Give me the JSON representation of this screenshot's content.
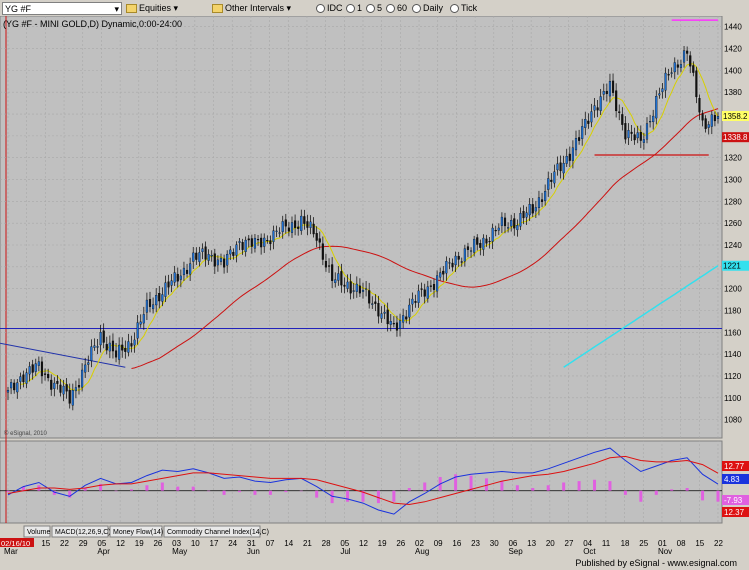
{
  "toolbar": {
    "symbol": "YG #F",
    "equities": "Equities",
    "intervals": "Other Intervals",
    "items": [
      "IDC",
      "1",
      "5",
      "60",
      "Daily",
      "Tick"
    ]
  },
  "chart_title": "(YG #F - MINI GOLD,D) Dynamic,0:00-24:00",
  "watermark": "© eSignal, 2010",
  "publisher": "Published by eSignal - www.esignal.com",
  "colors": {
    "bg": "#c0c0c0",
    "up": "#2a8c2a",
    "down": "#1a1a1a",
    "ma_red": "#cc1111",
    "ma_yellow": "#d8d000",
    "ma_cyan": "#33e0ee",
    "hline": "#2222bb",
    "trend": "#2233aa",
    "magenta": "#ff33ff",
    "macd_blue": "#1a33dd",
    "macd_red": "#dd1111",
    "hist": "#e060e0"
  },
  "price_badges": [
    {
      "label": "1358.2",
      "value": 1358.2,
      "color": "#ffff66"
    },
    {
      "label": "1338.8",
      "value": 1338.8,
      "color": "#cc1111"
    },
    {
      "label": "1221",
      "value": 1221,
      "color": "#33e0ee"
    }
  ],
  "macd_badges": [
    {
      "label": "12.77",
      "color": "#dd1111"
    },
    {
      "label": "4.83",
      "color": "#1a33dd"
    },
    {
      "label": "-7.93",
      "color": "#e060e0"
    },
    {
      "label": "12.37",
      "color": "#dd1111"
    }
  ],
  "tabs": [
    "Volume",
    "MACD(12,26,9,C)",
    "Money Flow(14)",
    "Commodity Channel Index(14,C)"
  ],
  "date_start_label": "02/16/10",
  "chart_data": [
    {
      "type": "candlestick",
      "title": "(YG #F - MINI GOLD,D) Dynamic,0:00-24:00",
      "ylim": [
        1065,
        1448
      ],
      "yticks": [
        1080,
        1100,
        1120,
        1140,
        1160,
        1180,
        1200,
        1220,
        1240,
        1260,
        1280,
        1300,
        1320,
        1340,
        1360,
        1380,
        1400,
        1420,
        1440
      ],
      "xticks": [
        "01",
        "08",
        "15",
        "22",
        "29",
        "05",
        "12",
        "19",
        "26",
        "03",
        "10",
        "17",
        "24",
        "31",
        "07",
        "14",
        "21",
        "28",
        "05",
        "12",
        "19",
        "26",
        "02",
        "09",
        "16",
        "23",
        "30",
        "06",
        "13",
        "20",
        "27",
        "04",
        "11",
        "18",
        "25",
        "01",
        "08",
        "15",
        "22"
      ],
      "month_labels": [
        "Mar",
        "Apr",
        "May",
        "Jun",
        "Jul",
        "Aug",
        "Sep",
        "Oct",
        "Nov"
      ],
      "month_label_ticks": [
        0,
        5,
        9,
        13,
        18,
        22,
        27,
        31,
        35
      ],
      "weekly_close": [
        1104,
        1122,
        1128,
        1112,
        1100,
        1128,
        1158,
        1138,
        1152,
        1182,
        1198,
        1210,
        1228,
        1232,
        1222,
        1244,
        1240,
        1248,
        1256,
        1262,
        1248,
        1208,
        1204,
        1196,
        1182,
        1162,
        1184,
        1198,
        1212,
        1228,
        1236,
        1246,
        1258,
        1262,
        1272,
        1296,
        1316,
        1338,
        1368,
        1384,
        1344,
        1334,
        1372,
        1402,
        1416,
        1352,
        1356
      ],
      "horizontal_lines": [
        1163.5,
        1322.5,
        1446
      ]
    },
    {
      "type": "line",
      "title": "MACD(12,26,9,C)",
      "series": [
        {
          "name": "MACD",
          "values": [
            -3,
            3,
            6,
            -1,
            -4,
            4,
            9,
            5,
            6,
            11,
            15,
            14,
            16,
            13,
            9,
            10,
            7,
            6,
            8,
            9,
            3,
            -4,
            -6,
            -9,
            -14,
            -17,
            -8,
            -2,
            5,
            10,
            12,
            13,
            14,
            13,
            13,
            16,
            20,
            24,
            28,
            31,
            22,
            14,
            18,
            22,
            24,
            12,
            4.83
          ]
        },
        {
          "name": "Signal",
          "values": [
            -2,
            0,
            2,
            2,
            1,
            2,
            4,
            5,
            5,
            7,
            9,
            11,
            13,
            13,
            12,
            11,
            10,
            9,
            9,
            9,
            8,
            5,
            2,
            -1,
            -5,
            -9,
            -10,
            -8,
            -5,
            -2,
            1,
            4,
            7,
            9,
            11,
            12,
            14,
            17,
            20,
            24,
            25,
            22,
            21,
            21,
            22,
            19,
            12.77
          ]
        },
        {
          "name": "Histogram",
          "values": [
            -1,
            3,
            4,
            -3,
            -5,
            2,
            5,
            0,
            1,
            4,
            6,
            3,
            3,
            0,
            -3,
            -1,
            -3,
            -3,
            -1,
            0,
            -5,
            -9,
            -8,
            -8,
            -9,
            -8,
            2,
            6,
            10,
            12,
            11,
            9,
            7,
            4,
            2,
            4,
            6,
            7,
            8,
            7,
            -3,
            -8,
            -3,
            1,
            2,
            -7,
            -7.93
          ]
        }
      ]
    }
  ]
}
